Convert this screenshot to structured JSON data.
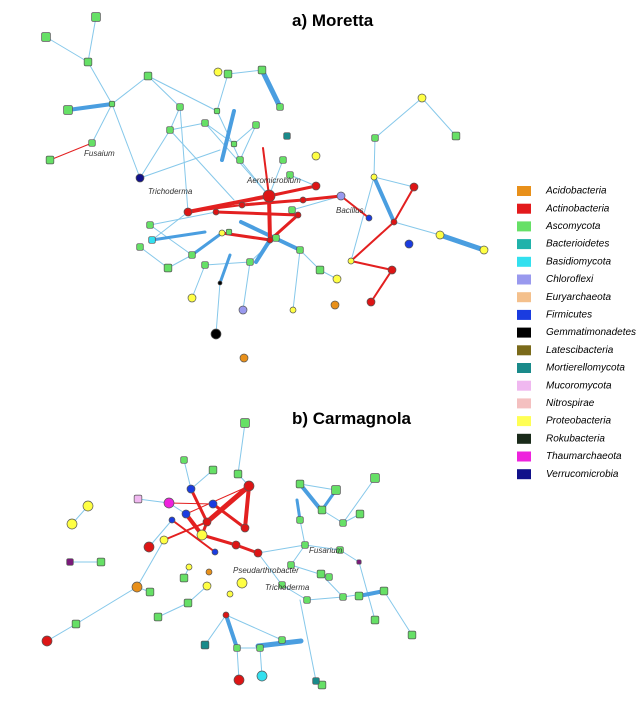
{
  "panels": [
    {
      "title": "a) Moretta",
      "labels": [
        "Fusaium",
        "Trichoderma",
        "Aeromicrobium",
        "Bacillus"
      ]
    },
    {
      "title": "b) Carmagnola",
      "labels": [
        "Fusarium",
        "Pseudarthrobacter",
        "Trichoderma"
      ]
    }
  ],
  "legend": [
    {
      "label": "Acidobacteria",
      "color": "#e8901a"
    },
    {
      "label": "Actinobacteria",
      "color": "#e31a1c"
    },
    {
      "label": "Ascomycota",
      "color": "#66e066"
    },
    {
      "label": "Bacterioidetes",
      "color": "#20b2aa"
    },
    {
      "label": "Basidiomycota",
      "color": "#33e0ef"
    },
    {
      "label": "Chloroflexi",
      "color": "#9999ee"
    },
    {
      "label": "Euryarchaeota",
      "color": "#f4c08c"
    },
    {
      "label": "Firmicutes",
      "color": "#1a3ce0"
    },
    {
      "label": "Gemmatimonadetes",
      "color": "#000000"
    },
    {
      "label": "Latescibacteria",
      "color": "#7a6a1a"
    },
    {
      "label": "Mortierellomycota",
      "color": "#1a8a8a"
    },
    {
      "label": "Mucoromycota",
      "color": "#f0b8f0"
    },
    {
      "label": "Nitrospirae",
      "color": "#f4c0c0"
    },
    {
      "label": "Proteobacteria",
      "color": "#ffff55"
    },
    {
      "label": "Rokubacteria",
      "color": "#1a2a1a"
    },
    {
      "label": "Thaumarchaeota",
      "color": "#ee22dd"
    },
    {
      "label": "Verrucomicrobia",
      "color": "#10108a"
    }
  ]
}
